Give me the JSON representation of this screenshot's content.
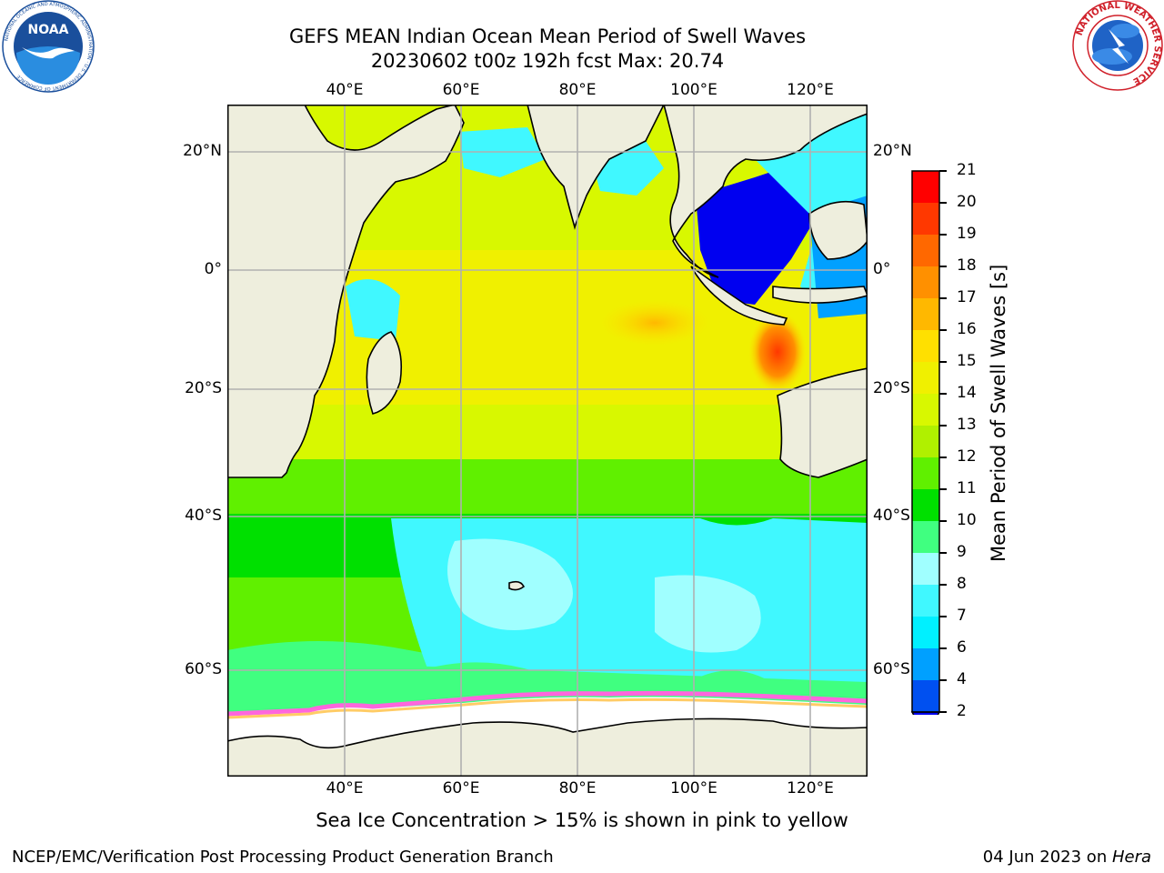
{
  "title": {
    "line1": "GEFS MEAN Indian Ocean Mean Period of Swell Waves",
    "line2": "20230602 t00z 192h fcst   Max: 20.74"
  },
  "logos": {
    "noaa": {
      "wordmark": "NOAA",
      "ring_text": "NATIONAL OCEANIC AND ATMOSPHERIC ADMINISTRATION · U.S. DEPARTMENT OF COMMERCE",
      "colors": {
        "ring": "#ffffff",
        "outer": "#1a4f9c",
        "inner": "#2a8de0",
        "bird": "#ffffff"
      }
    },
    "nws": {
      "ring_text": "NATIONAL WEATHER SERVICE",
      "colors": {
        "ring_text": "#d0202a",
        "globe": "#1f63c6",
        "bolt": "#ffffff"
      }
    }
  },
  "map": {
    "lon_ticks": [
      "40°E",
      "60°E",
      "80°E",
      "100°E",
      "120°E"
    ],
    "lat_ticks": [
      "20°N",
      "0°",
      "20°S",
      "40°S",
      "60°S"
    ],
    "grid": true,
    "colors": {
      "land": "#eeeedd",
      "grid": "#b0b0b0",
      "coast": "#000000",
      "sea_ice": "#ffffff",
      "ice_edge": [
        "#ff66dd",
        "#ffb0b0",
        "#ffcc66"
      ]
    }
  },
  "colorbar": {
    "title": "Mean Period of Swell Waves [s]",
    "levels": [
      "2",
      "4",
      "6",
      "7",
      "8",
      "9",
      "10",
      "11",
      "12",
      "13",
      "14",
      "15",
      "16",
      "17",
      "18",
      "19",
      "20",
      "21"
    ],
    "colors": [
      "#0050f0",
      "#00a0ff",
      "#00f0ff",
      "#40f8ff",
      "#a0ffff",
      "#40ff80",
      "#00e000",
      "#60f000",
      "#b0f000",
      "#d8f800",
      "#f0f000",
      "#ffe000",
      "#ffb800",
      "#ff9000",
      "#ff6800",
      "#ff3800",
      "#ff0000"
    ],
    "under_color": "#0000f0",
    "extend": "min"
  },
  "caption": "Sea Ice Concentration > 15% is shown in pink to yellow",
  "footer": {
    "left": "NCEP/EMC/Verification Post Processing Product Generation Branch",
    "date": "04 Jun 2023 on ",
    "host": "Hera"
  }
}
